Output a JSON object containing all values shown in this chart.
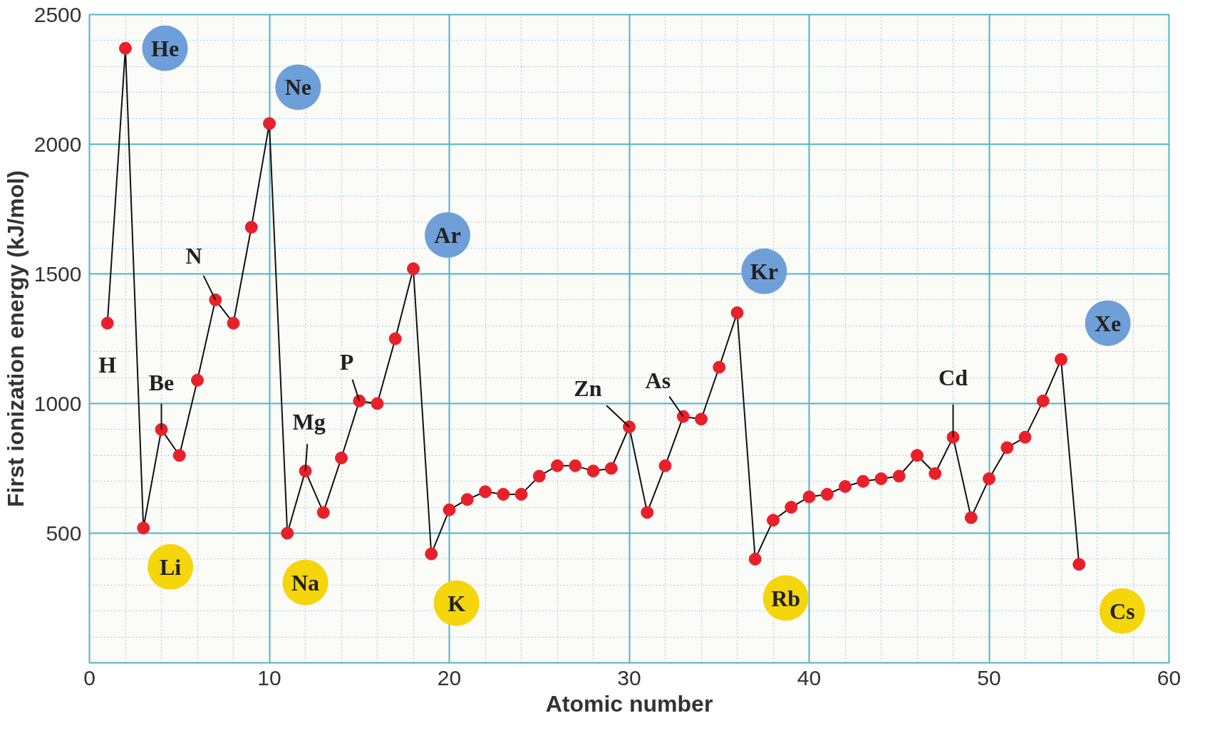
{
  "chart_data": {
    "type": "line",
    "xlabel": "Atomic number",
    "ylabel": "First ionization energy (kJ/mol)",
    "xlim": [
      0,
      60
    ],
    "ylim": [
      0,
      2500
    ],
    "xticks": [
      0,
      10,
      20,
      30,
      40,
      50,
      60
    ],
    "yticks": [
      500,
      1000,
      1500,
      2000,
      2500
    ],
    "grid": true,
    "marker": "circle",
    "line_style": "solid",
    "series": [
      {
        "color": "#e8202a",
        "x": [
          1,
          2,
          3,
          4,
          5,
          6,
          7,
          8,
          9,
          10,
          11,
          12,
          13,
          14,
          15,
          16,
          17,
          18,
          19,
          20,
          21,
          22,
          23,
          24,
          25,
          26,
          27,
          28,
          29,
          30,
          31,
          32,
          33,
          34,
          35,
          36,
          37,
          38,
          39,
          40,
          41,
          42,
          43,
          44,
          45,
          46,
          47,
          48,
          49,
          50,
          51,
          52,
          53,
          54,
          55
        ],
        "values": [
          1310,
          2370,
          520,
          900,
          800,
          1090,
          1400,
          1310,
          1680,
          2080,
          500,
          740,
          580,
          790,
          1010,
          1000,
          1250,
          1520,
          420,
          590,
          630,
          660,
          650,
          650,
          720,
          760,
          760,
          740,
          750,
          910,
          580,
          760,
          950,
          940,
          1140,
          1350,
          400,
          550,
          600,
          640,
          650,
          680,
          700,
          710,
          720,
          800,
          730,
          870,
          560,
          710,
          830,
          870,
          1010,
          1170,
          380
        ]
      }
    ],
    "annotations": [
      {
        "text": "H",
        "x": 1,
        "y": 1310
      },
      {
        "text": "He",
        "x": 2,
        "y": 2370
      },
      {
        "text": "Li",
        "x": 3,
        "y": 520
      },
      {
        "text": "Be",
        "x": 4,
        "y": 900
      },
      {
        "text": "N",
        "x": 7,
        "y": 1400
      },
      {
        "text": "Ne",
        "x": 10,
        "y": 2080
      },
      {
        "text": "Na",
        "x": 11,
        "y": 500
      },
      {
        "text": "Mg",
        "x": 12,
        "y": 740
      },
      {
        "text": "P",
        "x": 15,
        "y": 1010
      },
      {
        "text": "Ar",
        "x": 18,
        "y": 1520
      },
      {
        "text": "K",
        "x": 19,
        "y": 420
      },
      {
        "text": "Zn",
        "x": 30,
        "y": 910
      },
      {
        "text": "As",
        "x": 33,
        "y": 950
      },
      {
        "text": "Kr",
        "x": 36,
        "y": 1350
      },
      {
        "text": "Rb",
        "x": 37,
        "y": 400
      },
      {
        "text": "Cd",
        "x": 48,
        "y": 870
      },
      {
        "text": "Xe",
        "x": 54,
        "y": 1170
      },
      {
        "text": "Cs",
        "x": 55,
        "y": 380
      }
    ]
  }
}
